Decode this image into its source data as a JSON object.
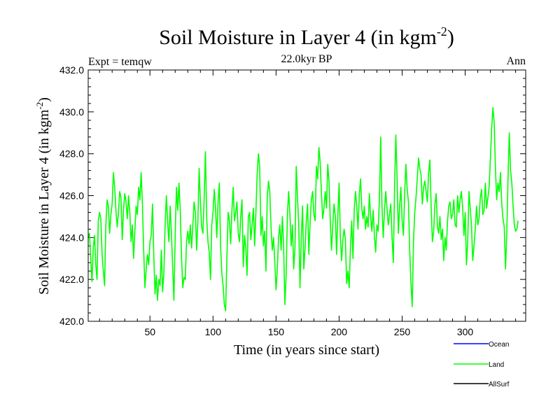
{
  "chart_data": {
    "type": "line",
    "title": "Soil Moisture in Layer 4 (in kgm",
    "title_sup": "-2",
    "title_close": ")",
    "subtitle": "22.0kyr BP",
    "left_label": "Expt = temqw",
    "right_label": "Ann",
    "xlabel": "Time (in years since start)",
    "ylabel": "Soil Moisture in Layer 4 (in kgm",
    "ylabel_sup": "-2",
    "ylabel_close": ")",
    "xlim": [
      1,
      348
    ],
    "ylim": [
      420.0,
      432.0
    ],
    "xticks": [
      50,
      100,
      150,
      200,
      250,
      300
    ],
    "yticks": [
      420.0,
      422.0,
      424.0,
      426.0,
      428.0,
      430.0,
      432.0
    ],
    "series": [
      {
        "name": "Ocean",
        "color": "#0000ff",
        "values": []
      },
      {
        "name": "Land",
        "color": "#00ff00",
        "x_start": 1,
        "x_step": 1,
        "values": [
          424.0,
          424.2,
          423.0,
          421.9,
          423.5,
          424.1,
          422.7,
          422.0,
          424.8,
          425.2,
          424.9,
          423.2,
          422.4,
          421.7,
          424.6,
          425.8,
          425.5,
          424.2,
          425.1,
          425.6,
          427.1,
          426.4,
          425.3,
          424.5,
          425.2,
          426.2,
          425.9,
          423.9,
          425.3,
          426.1,
          425.7,
          424.9,
          426.0,
          425.2,
          423.8,
          424.6,
          423.0,
          424.3,
          425.5,
          425.1,
          426.4,
          425.8,
          427.1,
          425.6,
          423.4,
          421.6,
          422.5,
          423.2,
          422.7,
          423.8,
          424.1,
          425.6,
          423.2,
          421.3,
          422.2,
          421.0,
          422.0,
          421.7,
          423.4,
          421.4,
          422.3,
          424.6,
          426.0,
          424.7,
          423.8,
          425.5,
          424.2,
          422.6,
          421.0,
          424.1,
          426.4,
          425.3,
          426.6,
          425.3,
          423.1,
          421.6,
          422.1,
          422.0,
          423.8,
          424.3,
          423.7,
          424.6,
          423.5,
          424.6,
          425.7,
          425.2,
          423.4,
          424.8,
          427.3,
          425.7,
          424.5,
          424.2,
          425.9,
          428.1,
          424.9,
          423.8,
          423.3,
          422.0,
          424.6,
          425.2,
          426.3,
          425.4,
          424.0,
          425.7,
          426.6,
          423.6,
          422.3,
          421.7,
          420.8,
          420.5,
          423.0,
          425.2,
          424.8,
          423.7,
          425.3,
          426.4,
          424.8,
          425.2,
          425.7,
          424.2,
          423.8,
          425.0,
          425.8,
          422.6,
          424.1,
          423.5,
          422.2,
          425.0,
          425.2,
          423.9,
          424.6,
          425.4,
          423.6,
          425.2,
          427.0,
          428.0,
          427.4,
          424.1,
          425.0,
          423.6,
          424.3,
          422.4,
          425.9,
          426.7,
          426.2,
          424.5,
          423.4,
          424.0,
          422.8,
          421.5,
          422.5,
          424.0,
          424.6,
          423.4,
          425.0,
          423.6,
          420.8,
          422.2,
          425.1,
          426.2,
          425.1,
          423.6,
          424.6,
          422.5,
          423.5,
          427.4,
          425.9,
          424.6,
          421.6,
          424.0,
          425.5,
          422.5,
          423.5,
          424.8,
          425.6,
          423.2,
          424.7,
          425.8,
          426.2,
          425.1,
          424.8,
          427.4,
          426.8,
          428.3,
          427.6,
          426.1,
          424.9,
          425.4,
          426.2,
          425.4,
          427.5,
          426.7,
          424.8,
          423.4,
          424.6,
          425.6,
          425.0,
          423.2,
          425.1,
          426.6,
          424.0,
          422.9,
          423.9,
          424.4,
          423.9,
          421.8,
          422.4,
          421.6,
          423.5,
          424.8,
          423.0,
          425.3,
          426.2,
          425.5,
          424.4,
          426.0,
          426.8,
          425.4,
          424.9,
          425.5,
          424.4,
          425.0,
          424.5,
          426.1,
          425.0,
          424.3,
          425.3,
          424.1,
          423.3,
          424.6,
          424.3,
          425.9,
          428.8,
          425.5,
          424.0,
          425.3,
          426.2,
          425.4,
          424.6,
          425.1,
          425.6,
          424.0,
          422.8,
          426.4,
          428.9,
          426.8,
          424.2,
          425.5,
          426.4,
          424.8,
          424.1,
          426.1,
          427.5,
          426.3,
          425.7,
          423.4,
          421.8,
          420.7,
          423.8,
          425.2,
          425.9,
          426.8,
          427.8,
          427.3,
          427.0,
          425.6,
          426.4,
          426.7,
          426.2,
          425.7,
          427.1,
          427.7,
          425.5,
          423.8,
          424.3,
          425.6,
          426.1,
          424.5,
          424.2,
          425.0,
          423.9,
          424.4,
          422.9,
          424.0,
          423.4,
          424.8,
          425.5,
          425.7,
          424.9,
          425.1,
          425.8,
          424.6,
          424.5,
          426.0,
          425.2,
          425.8,
          426.2,
          425.4,
          424.1,
          425.2,
          422.7,
          423.8,
          426.2,
          425.4,
          424.6,
          422.9,
          423.6,
          424.4,
          425.5,
          424.6,
          424.9,
          425.9,
          426.3,
          425.1,
          425.3,
          426.6,
          425.4,
          425.9,
          426.4,
          427.8,
          429.2,
          430.2,
          429.5,
          427.3,
          425.8,
          426.6,
          426.2,
          427.1,
          425.6,
          424.9,
          424.5,
          422.5,
          424.2,
          426.9,
          429.0,
          427.2,
          426.6,
          425.5,
          424.6,
          424.3,
          424.4,
          424.8
        ]
      },
      {
        "name": "AllSurf",
        "color": "#000000",
        "values": []
      }
    ],
    "legend_position": "bottom-right"
  }
}
